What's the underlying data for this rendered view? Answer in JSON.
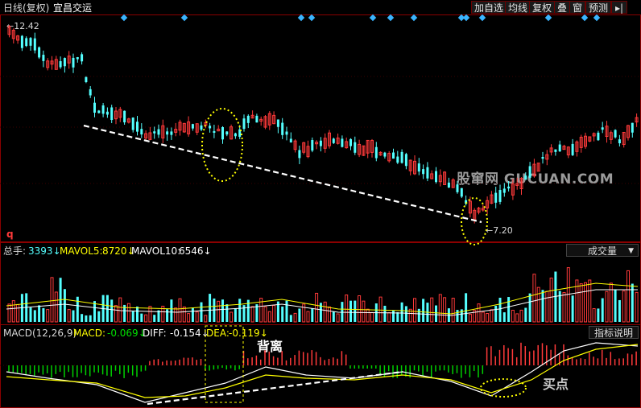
{
  "header": {
    "chart_mode": "日线(复权)",
    "stock_name": "宜昌交运",
    "buttons": [
      "加自选",
      "均线",
      "复权",
      "叠",
      "窗",
      "预测"
    ],
    "exit_icon": "exit-arrow-icon"
  },
  "price_panel": {
    "high_label": "12.42",
    "low_label": "7.20",
    "marker_label": "q",
    "watermark": "股窜网 GUCUAN.COM"
  },
  "volume_panel": {
    "label_total": "总手:",
    "total_value": "3393",
    "label_mavol5": "MAVOL5:",
    "mavol5_value": "8720",
    "label_mavol10": "MAVOL10:",
    "mavol10_value": "6546",
    "dropdown": "成交量"
  },
  "macd_panel": {
    "label_params": "MACD(12,26,9)",
    "label_macd": "MACD:",
    "macd_value": "-0.069",
    "label_diff": "DIFF:",
    "diff_value": "-0.154",
    "label_dea": "DEA:",
    "dea_value": "-0.119",
    "help_button": "指标说明",
    "annotation_divergence": "背离",
    "annotation_buy": "买点"
  },
  "colors": {
    "up": "#ff3a3a",
    "down": "#54ffff",
    "ma_white": "#ffffff",
    "ma_yellow": "#ffff00",
    "grid_red": "#8b0000",
    "diamond": "#3ab4ff"
  }
}
